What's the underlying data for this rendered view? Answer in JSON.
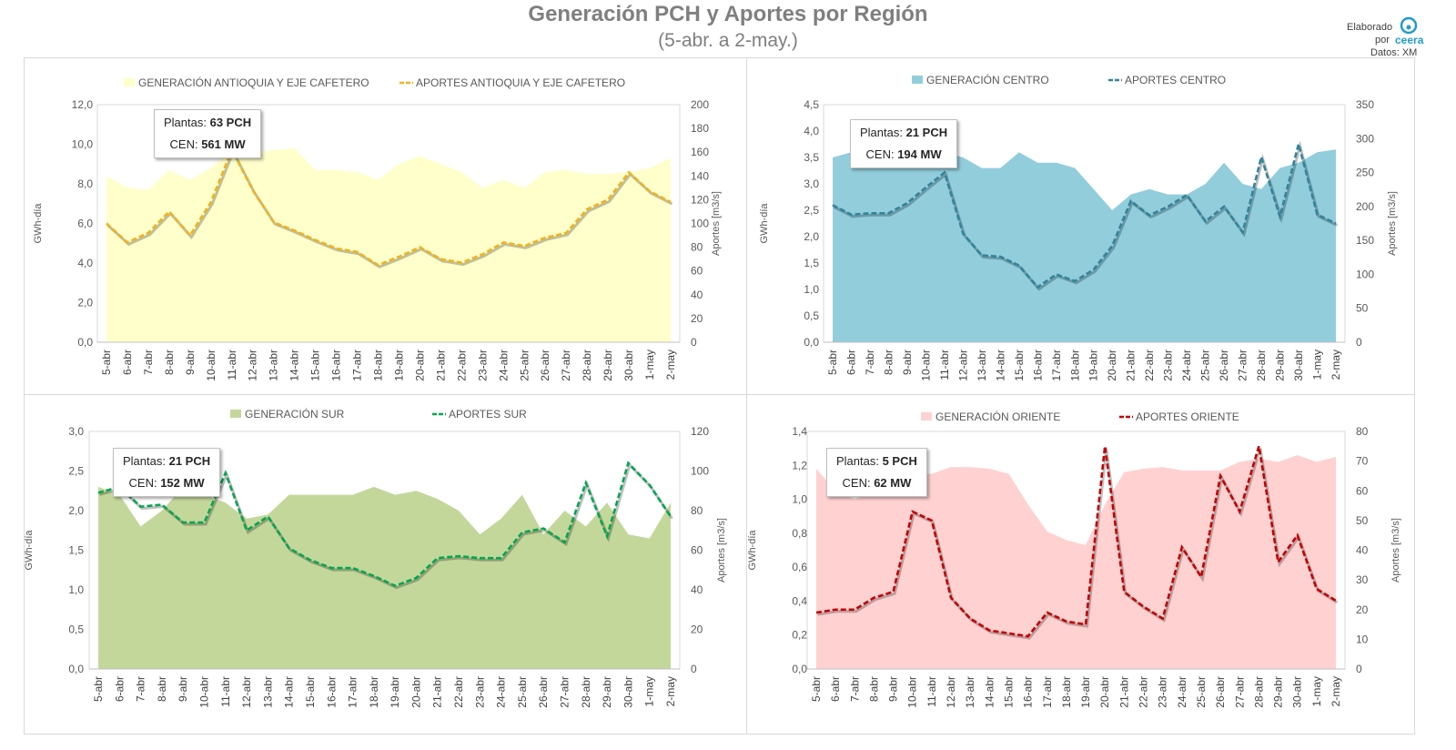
{
  "header": {
    "title": "Generación PCH y Aportes por Región",
    "subtitle": "(5-abr. a 2-may.)",
    "credit_line1": "Elaborado",
    "credit_line2": "por",
    "credit_brand": "ceera",
    "credit_source": "Datos: XM"
  },
  "chart_data": [
    {
      "type": "area+line",
      "legend_area": "GENERACIÓN ANTIOQUIA Y EJE CAFETERO",
      "legend_line": "APORTES ANTIOQUIA Y EJE CAFETERO",
      "ylabel": "GWh-día",
      "y2label": "Aportes [m3/s]",
      "ylim": [
        0,
        12
      ],
      "y_step": 2,
      "y2lim": [
        0,
        200
      ],
      "y2_step": 20,
      "area_color": "#ffffcc",
      "line_color": "#f2b21c",
      "info_plants_label": "Plantas:",
      "info_plants_value": "63 PCH",
      "info_cen_label": "CEN:",
      "info_cen_value": "561 MW",
      "categories": [
        "5-abr",
        "6-abr",
        "7-abr",
        "8-abr",
        "9-abr",
        "10-abr",
        "11-abr",
        "12-abr",
        "13-abr",
        "14-abr",
        "15-abr",
        "16-abr",
        "17-abr",
        "18-abr",
        "19-abr",
        "20-abr",
        "21-abr",
        "22-abr",
        "23-abr",
        "24-abr",
        "25-abr",
        "26-abr",
        "27-abr",
        "28-abr",
        "29-abr",
        "30-abr",
        "1-may",
        "2-may"
      ],
      "generacion": [
        8.4,
        7.8,
        7.7,
        8.7,
        8.2,
        8.8,
        9.7,
        9.6,
        9.7,
        9.8,
        8.7,
        8.7,
        8.6,
        8.2,
        9.0,
        9.4,
        9.0,
        8.6,
        7.8,
        8.2,
        7.8,
        8.6,
        8.7,
        8.5,
        8.5,
        8.6,
        8.8,
        9.3
      ],
      "aportes": [
        100,
        84,
        92,
        110,
        90,
        118,
        162,
        128,
        101,
        94,
        86,
        79,
        76,
        65,
        72,
        80,
        70,
        67,
        74,
        84,
        81,
        88,
        92,
        112,
        120,
        143,
        127,
        118
      ]
    },
    {
      "type": "area+line",
      "legend_area": "GENERACIÓN CENTRO",
      "legend_line": "APORTES CENTRO",
      "ylabel": "GWh-día",
      "y2label": "Aportes [m3/s]",
      "ylim": [
        0,
        4.5
      ],
      "y_step": 0.5,
      "y2lim": [
        0,
        350
      ],
      "y2_step": 50,
      "area_color": "#92cddc",
      "line_color": "#31849b",
      "info_plants_label": "Plantas:",
      "info_plants_value": "21 PCH",
      "info_cen_label": "CEN:",
      "info_cen_value": "194 MW",
      "categories": [
        "5-abr",
        "6-abr",
        "7-abr",
        "8-abr",
        "9-abr",
        "10-abr",
        "11-abr",
        "12-abr",
        "13-abr",
        "14-abr",
        "15-abr",
        "16-abr",
        "17-abr",
        "18-abr",
        "19-abr",
        "20-abr",
        "21-abr",
        "22-abr",
        "23-abr",
        "24-abr",
        "25-abr",
        "26-abr",
        "27-abr",
        "28-abr",
        "29-abr",
        "30-abr",
        "1-may",
        "2-may"
      ],
      "generacion": [
        3.5,
        3.6,
        3.6,
        3.6,
        3.6,
        3.6,
        3.6,
        3.5,
        3.3,
        3.3,
        3.6,
        3.4,
        3.4,
        3.3,
        2.9,
        2.5,
        2.8,
        2.9,
        2.8,
        2.8,
        3.0,
        3.4,
        3.0,
        2.9,
        3.3,
        3.4,
        3.6,
        3.65
      ],
      "aportes": [
        202,
        188,
        190,
        190,
        205,
        228,
        250,
        160,
        128,
        126,
        113,
        81,
        100,
        90,
        107,
        142,
        208,
        187,
        200,
        217,
        178,
        200,
        162,
        273,
        185,
        292,
        188,
        175
      ]
    },
    {
      "type": "area+line",
      "legend_area": "GENERACIÓN SUR",
      "legend_line": "APORTES SUR",
      "ylabel": "GWh-día",
      "y2label": "Aportes [m3/s]",
      "ylim": [
        0,
        3.0
      ],
      "y_step": 0.5,
      "y2lim": [
        0,
        120
      ],
      "y2_step": 20,
      "area_color": "#c4d79b",
      "line_color": "#00a651",
      "info_plants_label": "Plantas:",
      "info_plants_value": "21 PCH",
      "info_cen_label": "CEN:",
      "info_cen_value": "152 MW",
      "categories": [
        "5-abr",
        "6-abr",
        "7-abr",
        "8-abr",
        "9-abr",
        "10-abr",
        "11-abr",
        "12-abr",
        "13-abr",
        "14-abr",
        "15-abr",
        "16-abr",
        "17-abr",
        "18-abr",
        "19-abr",
        "20-abr",
        "21-abr",
        "22-abr",
        "23-abr",
        "24-abr",
        "25-abr",
        "26-abr",
        "27-abr",
        "28-abr",
        "29-abr",
        "30-abr",
        "1-may",
        "2-may"
      ],
      "generacion": [
        2.3,
        2.2,
        1.8,
        2.0,
        2.3,
        2.2,
        2.1,
        1.9,
        1.95,
        2.2,
        2.2,
        2.2,
        2.2,
        2.3,
        2.2,
        2.25,
        2.15,
        2.0,
        1.7,
        1.9,
        2.2,
        1.7,
        2.0,
        1.8,
        2.1,
        1.7,
        1.65,
        2.1
      ],
      "aportes": [
        89,
        92,
        82,
        83,
        74,
        74,
        99,
        70,
        77,
        61,
        55,
        51,
        51,
        47,
        42,
        46,
        56,
        57,
        56,
        56,
        69,
        71,
        64,
        94,
        67,
        104,
        93,
        77
      ]
    },
    {
      "type": "area+line",
      "legend_area": "GENERACIÓN ORIENTE",
      "legend_line": "APORTES ORIENTE",
      "ylabel": "GWh-día",
      "y2label": "Aportes [m3/s]",
      "ylim": [
        0,
        1.4
      ],
      "y_step": 0.2,
      "y2lim": [
        0,
        80
      ],
      "y2_step": 10,
      "area_color": "#ffd1d1",
      "line_color": "#c00000",
      "info_plants_label": "Plantas:",
      "info_plants_value": "5 PCH",
      "info_cen_label": "CEN:",
      "info_cen_value": "62 MW",
      "categories": [
        "5-abr",
        "6-abr",
        "7-abr",
        "8-abr",
        "9-abr",
        "10-abr",
        "11-abr",
        "12-abr",
        "13-abr",
        "14-abr",
        "15-abr",
        "16-abr",
        "17-abr",
        "18-abr",
        "19-abr",
        "20-abr",
        "21-abr",
        "22-abr",
        "23-abr",
        "24-abr",
        "25-abr",
        "26-abr",
        "27-abr",
        "28-abr",
        "29-abr",
        "30-abr",
        "1-may",
        "2-may"
      ],
      "generacion": [
        1.18,
        1.05,
        1.0,
        1.05,
        1.1,
        1.15,
        1.15,
        1.19,
        1.19,
        1.18,
        1.15,
        0.97,
        0.81,
        0.76,
        0.73,
        0.97,
        1.16,
        1.18,
        1.19,
        1.17,
        1.17,
        1.17,
        1.22,
        1.24,
        1.22,
        1.26,
        1.22,
        1.25
      ],
      "aportes": [
        19,
        20,
        20,
        24,
        26,
        53,
        50,
        24,
        17,
        13,
        12,
        11,
        19,
        16,
        15,
        75,
        26,
        21,
        17,
        41,
        31,
        65,
        53,
        75,
        36,
        45,
        27,
        23
      ]
    }
  ]
}
